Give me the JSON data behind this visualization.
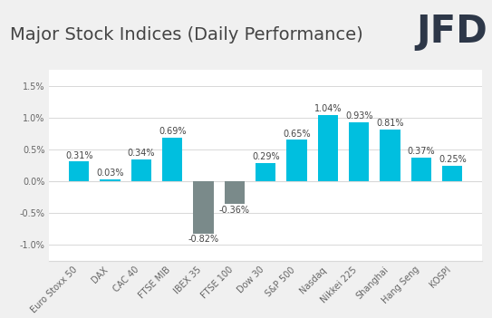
{
  "title": "Major Stock Indices (Daily Performance)",
  "categories": [
    "Euro Stoxx 50",
    "DAX",
    "CAC 40",
    "FTSE MIB",
    "IBEX 35",
    "FTSE 100",
    "Dow 30",
    "S&P 500",
    "Nasdaq",
    "Nikkei 225",
    "Shanghai",
    "Hang Seng",
    "KOSPI"
  ],
  "values": [
    0.31,
    0.03,
    0.34,
    0.69,
    -0.82,
    -0.36,
    0.29,
    0.65,
    1.04,
    0.93,
    0.81,
    0.37,
    0.25
  ],
  "bar_color_positive": "#00BFDF",
  "bar_color_negative": "#7a8a8a",
  "ylim": [
    -1.25,
    1.75
  ],
  "yticks": [
    -1.0,
    -0.5,
    0.0,
    0.5,
    1.0,
    1.5
  ],
  "ytick_labels": [
    "-1.0%",
    "-0.5%",
    "0.0%",
    "0.5%",
    "1.0%",
    "1.5%"
  ],
  "plot_bg_color": "#ffffff",
  "fig_bg_color": "#f0f0f0",
  "header_bg_color": "#ffffff",
  "title_fontsize": 14,
  "tick_fontsize": 7,
  "annotation_fontsize": 7,
  "grid_color": "#d8d8d8",
  "title_color": "#444444",
  "tick_color": "#666666",
  "jfd_color": "#2d3748",
  "jfd_fontsize": 30
}
